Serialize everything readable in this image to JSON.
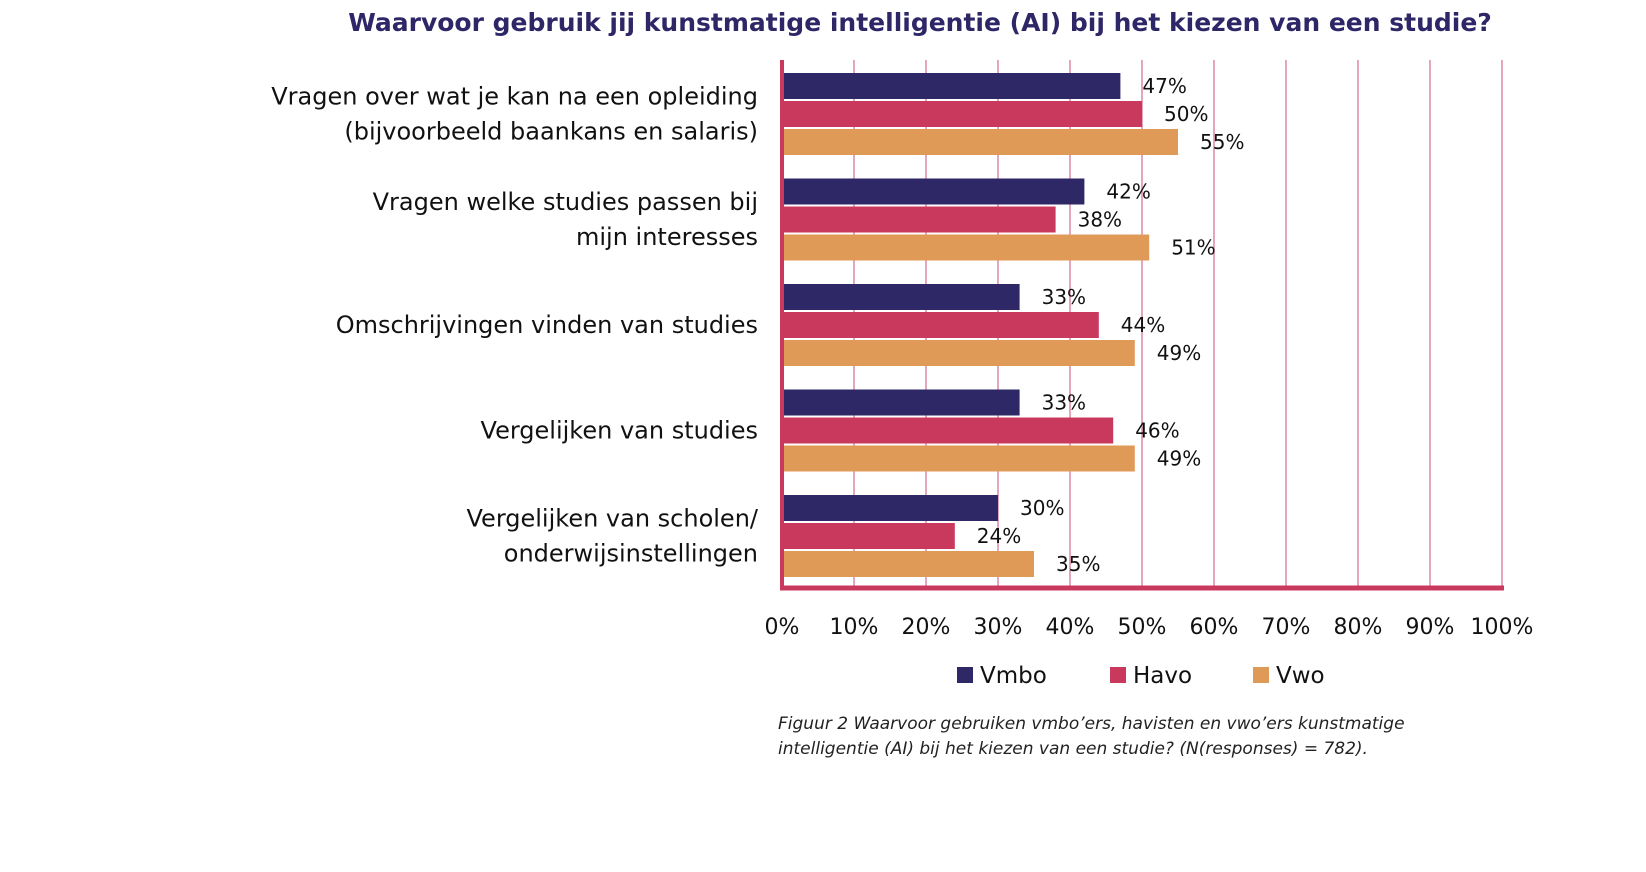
{
  "chart_data": {
    "type": "bar",
    "orientation": "horizontal",
    "title": "Waarvoor gebruik jij kunstmatige intelligentie (AI) bij het kiezen van een studie?",
    "categories": [
      [
        "Vragen over wat je kan na een opleiding",
        "(bijvoorbeeld baankans en salaris)"
      ],
      [
        "Vragen welke studies passen bij",
        "mijn interesses"
      ],
      [
        "Omschrijvingen vinden van studies"
      ],
      [
        "Vergelijken van studies"
      ],
      [
        "Vergelijken van scholen/",
        "onderwijsinstellingen"
      ]
    ],
    "series": [
      {
        "name": "Vmbo",
        "color": "#2e2966",
        "values": [
          47,
          42,
          33,
          33,
          30
        ]
      },
      {
        "name": "Havo",
        "color": "#c9395d",
        "values": [
          50,
          38,
          44,
          46,
          24
        ]
      },
      {
        "name": "Vwo",
        "color": "#e09a58",
        "values": [
          55,
          51,
          49,
          49,
          35
        ]
      }
    ],
    "xlim": [
      0,
      100
    ],
    "xticks": [
      0,
      10,
      20,
      30,
      40,
      50,
      60,
      70,
      80,
      90,
      100
    ],
    "tick_suffix": "%",
    "value_suffix": "%",
    "grid": true,
    "legend_position": "bottom"
  },
  "caption": "Figuur 2 Waarvoor gebruiken vmbo’ers, havisten en vwo’ers kunstmatige intelligentie (AI) bij het kiezen van een studie? (N(responses) = 782)."
}
